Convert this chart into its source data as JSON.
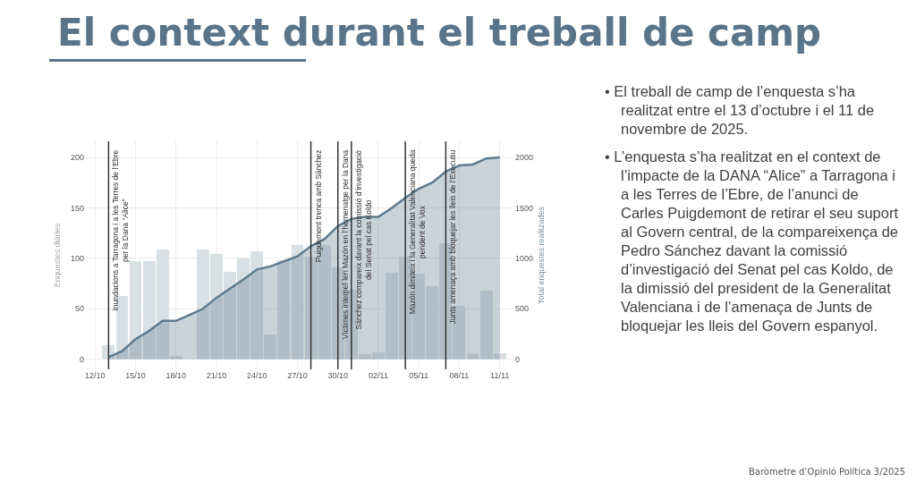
{
  "chart_data": {
    "type": "bar",
    "title": "El context durant el treball de camp",
    "ylabel": "Enquestes diàries",
    "y2label": "Total enquestes realitzades",
    "x": [
      "2025-10-13",
      "2025-10-14",
      "2025-10-15",
      "2025-10-16",
      "2025-10-17",
      "2025-10-18",
      "2025-10-19",
      "2025-10-20",
      "2025-10-21",
      "2025-10-22",
      "2025-10-23",
      "2025-10-24",
      "2025-10-25",
      "2025-10-26",
      "2025-10-27",
      "2025-10-28",
      "2025-10-29",
      "2025-10-30",
      "2025-10-31",
      "2025-11-01",
      "2025-11-02",
      "2025-11-03",
      "2025-11-04",
      "2025-11-05",
      "2025-11-06",
      "2025-11-07",
      "2025-11-08",
      "2025-11-09",
      "2025-11-10",
      "2025-11-11"
    ],
    "series": [
      {
        "color": "#d9e0e4",
        "values": [
          14,
          63,
          97,
          97,
          109,
          3,
          0,
          109,
          104,
          87,
          100,
          107,
          25,
          98,
          113,
          102,
          113,
          91,
          69,
          5,
          7,
          86,
          102,
          85,
          72,
          115,
          53,
          6,
          68,
          6
        ]
      },
      {
        "type": "area",
        "axis": "y2",
        "color": "#5e7b8f",
        "values": [
          20,
          80,
          200,
          280,
          380,
          380,
          440,
          500,
          610,
          700,
          790,
          890,
          920,
          970,
          1020,
          1120,
          1190,
          1320,
          1390,
          1410,
          1410,
          1500,
          1600,
          1690,
          1750,
          1860,
          1920,
          1930,
          1990,
          2000
        ]
      }
    ],
    "xlim": [
      "2025-10-11T06:00",
      "2025-11-12T02:00"
    ],
    "xticks": [
      {
        "value": "2025-10-12",
        "label": "12/10"
      },
      {
        "value": "2025-10-15",
        "label": "15/10"
      },
      {
        "value": "2025-10-18",
        "label": "18/10"
      },
      {
        "value": "2025-10-21",
        "label": "21/10"
      },
      {
        "value": "2025-10-24",
        "label": "24/10"
      },
      {
        "value": "2025-10-27",
        "label": "27/10"
      },
      {
        "value": "2025-10-30",
        "label": "30/10"
      },
      {
        "value": "2025-11-02",
        "label": "02/11"
      },
      {
        "value": "2025-11-05",
        "label": "05/11"
      },
      {
        "value": "2025-11-08",
        "label": "08/11"
      },
      {
        "value": "2025-11-11",
        "label": "11/11"
      }
    ],
    "ylim": [
      -10,
      216
    ],
    "yticks": [
      0,
      50,
      100,
      150,
      200
    ],
    "y2lim": [
      -100,
      2160
    ],
    "y2ticks": [
      0,
      500,
      1000,
      1500,
      2000
    ],
    "grid": true,
    "ref_lines": [
      {
        "axis": "x",
        "value": "2025-10-13",
        "label": "Inundacions a Tarragona i a les Terres de l’Ebre\nper la Dana “Alice”",
        "color": "#333333"
      },
      {
        "axis": "x",
        "value": "2025-10-28",
        "label": "Puigdemont trenca amb Sánchez",
        "color": "#333333"
      },
      {
        "axis": "x",
        "value": "2025-10-30",
        "label": "Víctimes interpel·len Mazón en l’homenatge per la Dana",
        "color": "#333333"
      },
      {
        "axis": "x",
        "value": "2025-10-31",
        "label": "Sánchez compareix davant la comissió d’investigació\ndel Senat pel cas Koldo",
        "color": "#333333"
      },
      {
        "axis": "x",
        "value": "2025-11-04",
        "label": "Mazón dimiteix i la Generalitat Valenciana queda\npendent de Vox",
        "color": "#333333"
      },
      {
        "axis": "x",
        "value": "2025-11-07",
        "label": "Junts amenaça amb bloquejar les lleis de l’Executiu",
        "color": "#333333"
      }
    ],
    "annotations": [
      "• El treball de camp de l’enquesta s’ha realitzat entre el 13 d’octubre i el 11 de novembre de 2025.",
      "• L’enquesta s’ha realitzat en el context de l’impacte de la DANA “Alice” a Tarragona i a les Terres de l’Ebre, de l’anunci de Carles Puigdemont de retirar el seu suport al Govern central, de la compareixença de Pedro Sánchez davant la comissió d’investigació del Senat pel cas Koldo, de la dimissió del president de la Generalitat Valenciana i de l’amenaça de Junts de bloquejar les lleis del Govern espanyol.",
      "Baròmetre d’Opinió Política 3/2025"
    ]
  }
}
